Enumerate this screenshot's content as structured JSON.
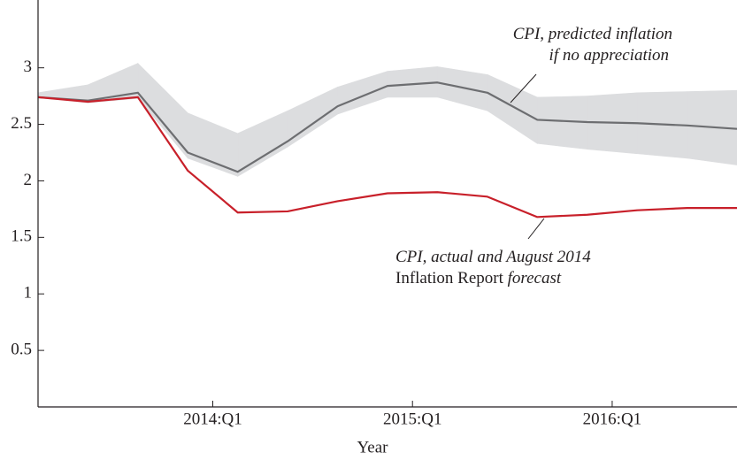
{
  "chart_data": {
    "type": "line",
    "x_label": "Year",
    "x": [
      2013.125,
      2013.375,
      2013.625,
      2013.875,
      2014.125,
      2014.375,
      2014.625,
      2014.875,
      2015.125,
      2015.375,
      2015.625,
      2015.875,
      2016.125,
      2016.375,
      2016.625
    ],
    "xlim": [
      2013.125,
      2016.625
    ],
    "xticks": [
      {
        "value": 2014,
        "label": "2014:Q1"
      },
      {
        "value": 2015,
        "label": "2015:Q1"
      },
      {
        "value": 2016,
        "label": "2016:Q1"
      }
    ],
    "ylim": [
      0,
      3.6
    ],
    "yticks": [
      0.5,
      1.0,
      1.5,
      2.0,
      2.5,
      3.0
    ],
    "band": {
      "color": "#dcdddf",
      "upper": [
        2.78,
        2.85,
        3.04,
        2.6,
        2.42,
        2.62,
        2.83,
        2.97,
        3.01,
        2.94,
        2.74,
        2.75,
        2.78,
        2.79,
        2.8
      ],
      "lower": [
        2.74,
        2.69,
        2.73,
        2.2,
        2.04,
        2.3,
        2.59,
        2.74,
        2.74,
        2.62,
        2.33,
        2.28,
        2.24,
        2.2,
        2.14
      ]
    },
    "series": [
      {
        "color": "#6d6e71",
        "values": [
          2.74,
          2.71,
          2.78,
          2.25,
          2.08,
          2.35,
          2.66,
          2.84,
          2.87,
          2.78,
          2.54,
          2.52,
          2.51,
          2.49,
          2.46
        ]
      },
      {
        "color": "#c8202a",
        "values": [
          2.74,
          2.7,
          2.74,
          2.09,
          1.72,
          1.73,
          1.82,
          1.89,
          1.9,
          1.86,
          1.68,
          1.7,
          1.74,
          1.76,
          1.76
        ]
      }
    ],
    "annotations": [
      {
        "lines": [
          [
            "CPI, predicted inflation"
          ],
          [
            "if no appreciation"
          ]
        ]
      },
      {
        "lines": [
          [
            "CPI, actual and August 2014"
          ],
          [
            "Inflation Report",
            "forecast"
          ]
        ]
      }
    ]
  }
}
